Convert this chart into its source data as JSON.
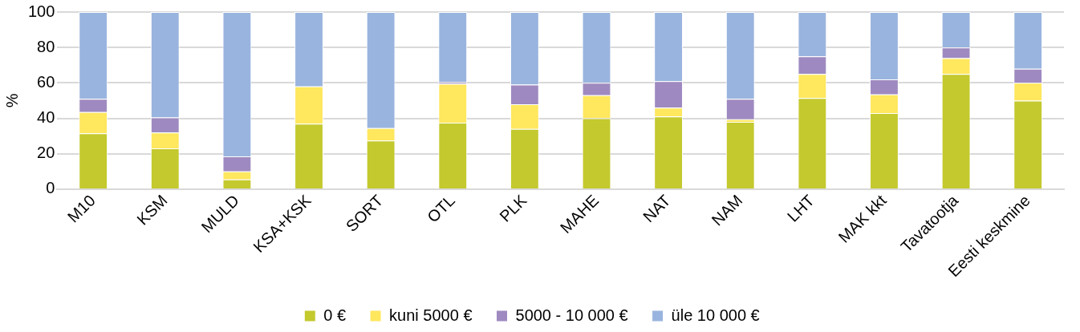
{
  "chart_data": {
    "type": "bar",
    "stacked": true,
    "ylabel": "%",
    "categories": [
      "M10",
      "KSM",
      "MULD",
      "KSA+KSK",
      "SORT",
      "OTL",
      "PLK",
      "MAHE",
      "NAT",
      "NAM",
      "LHT",
      "MAK kkt",
      "Tavatootja",
      "Eesti keskmine"
    ],
    "series": [
      {
        "name": "0 €",
        "color": "#c4c92e",
        "values": [
          31.5,
          23,
          5.5,
          37,
          27.5,
          37.5,
          34,
          40,
          41,
          38,
          51.5,
          43,
          65,
          50
        ]
      },
      {
        "name": "kuni 5000 €",
        "color": "#ffe75e",
        "values": [
          12,
          9,
          4.5,
          21,
          7,
          22,
          14,
          13,
          5,
          1.5,
          13.5,
          10.5,
          9,
          10
        ]
      },
      {
        "name": "5000 - 10 000 €",
        "color": "#9e8ac0",
        "values": [
          7.5,
          8.5,
          8.5,
          0,
          0,
          1,
          11,
          7,
          15,
          11.5,
          10,
          8.5,
          6,
          8
        ]
      },
      {
        "name": "üle 10 000 €",
        "color": "#99b4de",
        "values": [
          49,
          59.5,
          81.5,
          42,
          65.5,
          39.5,
          41,
          40,
          39,
          49,
          25,
          38,
          20,
          32
        ]
      }
    ],
    "ylim": [
      0,
      100
    ],
    "yticks": [
      0,
      20,
      40,
      60,
      80,
      100
    ],
    "grid": "y",
    "legend": "bottom"
  }
}
